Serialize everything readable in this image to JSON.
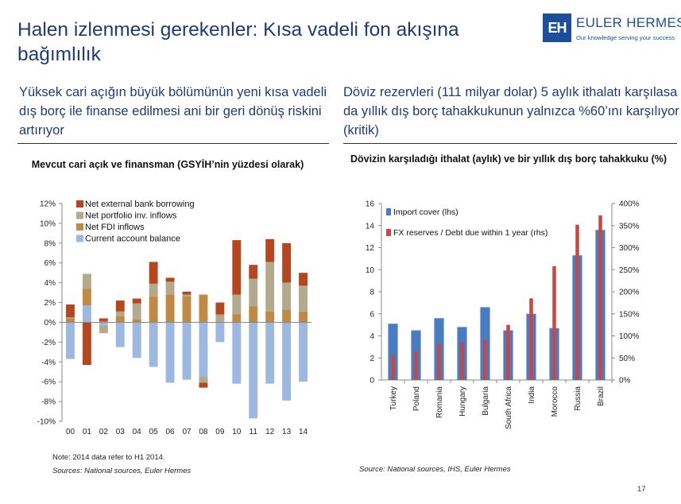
{
  "header": {
    "title": "Halen izlenmesi gerekenler: Kısa vadeli fon akışına bağımlılık",
    "logo_name": "EULER HERMES",
    "logo_tagline": "Our knowledge serving your success",
    "logo_mark": "EH"
  },
  "subtitles": {
    "left": "Yüksek cari açığın büyük bölümünün yeni kısa vadeli dış borç ile finanse edilmesi ani bir geri dönüş riskini artırıyor",
    "right": "Döviz rezervleri (111 milyar dolar) 5 aylık ithalatı karşılasa da yıllık dış borç tahakkukunun yalnızca %60’ını karşılıyor (kritik)"
  },
  "notes": {
    "left_note": "Note: 2014 data refer to H1 2014.",
    "left_source": "Sources: National sources, Euler Hermes",
    "right_source": "Source: National sources, IHS, Euler Hermes"
  },
  "page_number": "17",
  "colors": {
    "title_blue": "#1f3a7a",
    "bank": "#b5461e",
    "portfolio": "#b3a98c",
    "fdi": "#c08a44",
    "cab": "#9db8e0",
    "import_cover": "#4a7cc4",
    "fx_reserves": "#c94741"
  },
  "chart_data": [
    {
      "type": "bar",
      "stacked": true,
      "title": "Mevcut cari açık ve finansman (GSYİH’nin yüzdesi olarak)",
      "categories": [
        "00",
        "01",
        "02",
        "03",
        "04",
        "05",
        "06",
        "07",
        "08",
        "09",
        "10",
        "11",
        "12",
        "13",
        "14"
      ],
      "ylim": [
        -10,
        12
      ],
      "yticks": [
        "-10%",
        "-8%",
        "-6%",
        "-4%",
        "-2%",
        "0%",
        "2%",
        "4%",
        "6%",
        "8%",
        "10%",
        "12%"
      ],
      "legend_position": "top-left",
      "series": [
        {
          "name": "Net external bank borrowing",
          "key": "bank",
          "values": [
            1.3,
            -4.3,
            0.3,
            1.1,
            0.5,
            2.2,
            0.4,
            0.3,
            -0.5,
            1.2,
            5.5,
            1.4,
            2.3,
            4.0,
            1.3
          ]
        },
        {
          "name": "Net portfolio inv. inflows",
          "key": "portfolio",
          "values": [
            0.1,
            1.5,
            -0.8,
            0.5,
            1.6,
            1.3,
            1.3,
            0.2,
            -0.6,
            0.8,
            2.0,
            2.8,
            5.0,
            2.7,
            2.6
          ]
        },
        {
          "name": "Net FDI inflows",
          "key": "fdi",
          "values": [
            0.4,
            1.7,
            0.1,
            0.6,
            0.3,
            2.6,
            2.8,
            2.6,
            2.8,
            0.0,
            0.8,
            1.6,
            1.1,
            1.3,
            1.1
          ]
        },
        {
          "name": "Current account balance",
          "key": "cab",
          "values": [
            -3.7,
            1.7,
            -0.3,
            -2.5,
            -3.6,
            -4.5,
            -6.1,
            -5.8,
            -5.5,
            -2.0,
            -6.2,
            -9.7,
            -6.2,
            -7.9,
            -6.0
          ]
        }
      ]
    },
    {
      "type": "bar",
      "title": "Dövizin karşıladığı ithalat (aylık) ve bir yıllık dış borç tahakkuku (%)",
      "categories": [
        "Turkey",
        "Poland",
        "Romania",
        "Hungary",
        "Bulgaria",
        "South Africa",
        "India",
        "Morocco",
        "Russia",
        "Brazil"
      ],
      "ylim_left": [
        0,
        16
      ],
      "yticks_left": [
        "0",
        "2",
        "4",
        "6",
        "8",
        "10",
        "12",
        "14",
        "16"
      ],
      "ylim_right": [
        0,
        400
      ],
      "yticks_right": [
        "0%",
        "50%",
        "100%",
        "150%",
        "200%",
        "250%",
        "300%",
        "350%",
        "400%"
      ],
      "legend_position": "top-left",
      "series": [
        {
          "name": "Import cover (lhs)",
          "key": "import_cover",
          "axis": "left",
          "values": [
            5.1,
            4.5,
            5.6,
            4.8,
            6.6,
            4.5,
            6.0,
            4.7,
            11.3,
            13.6
          ]
        },
        {
          "name": "FX reserves / Debt due within 1 year (rhs)",
          "key": "fx_reserves",
          "axis": "right",
          "values": [
            57,
            65,
            82,
            85,
            90,
            125,
            185,
            258,
            352,
            373
          ]
        }
      ]
    }
  ]
}
